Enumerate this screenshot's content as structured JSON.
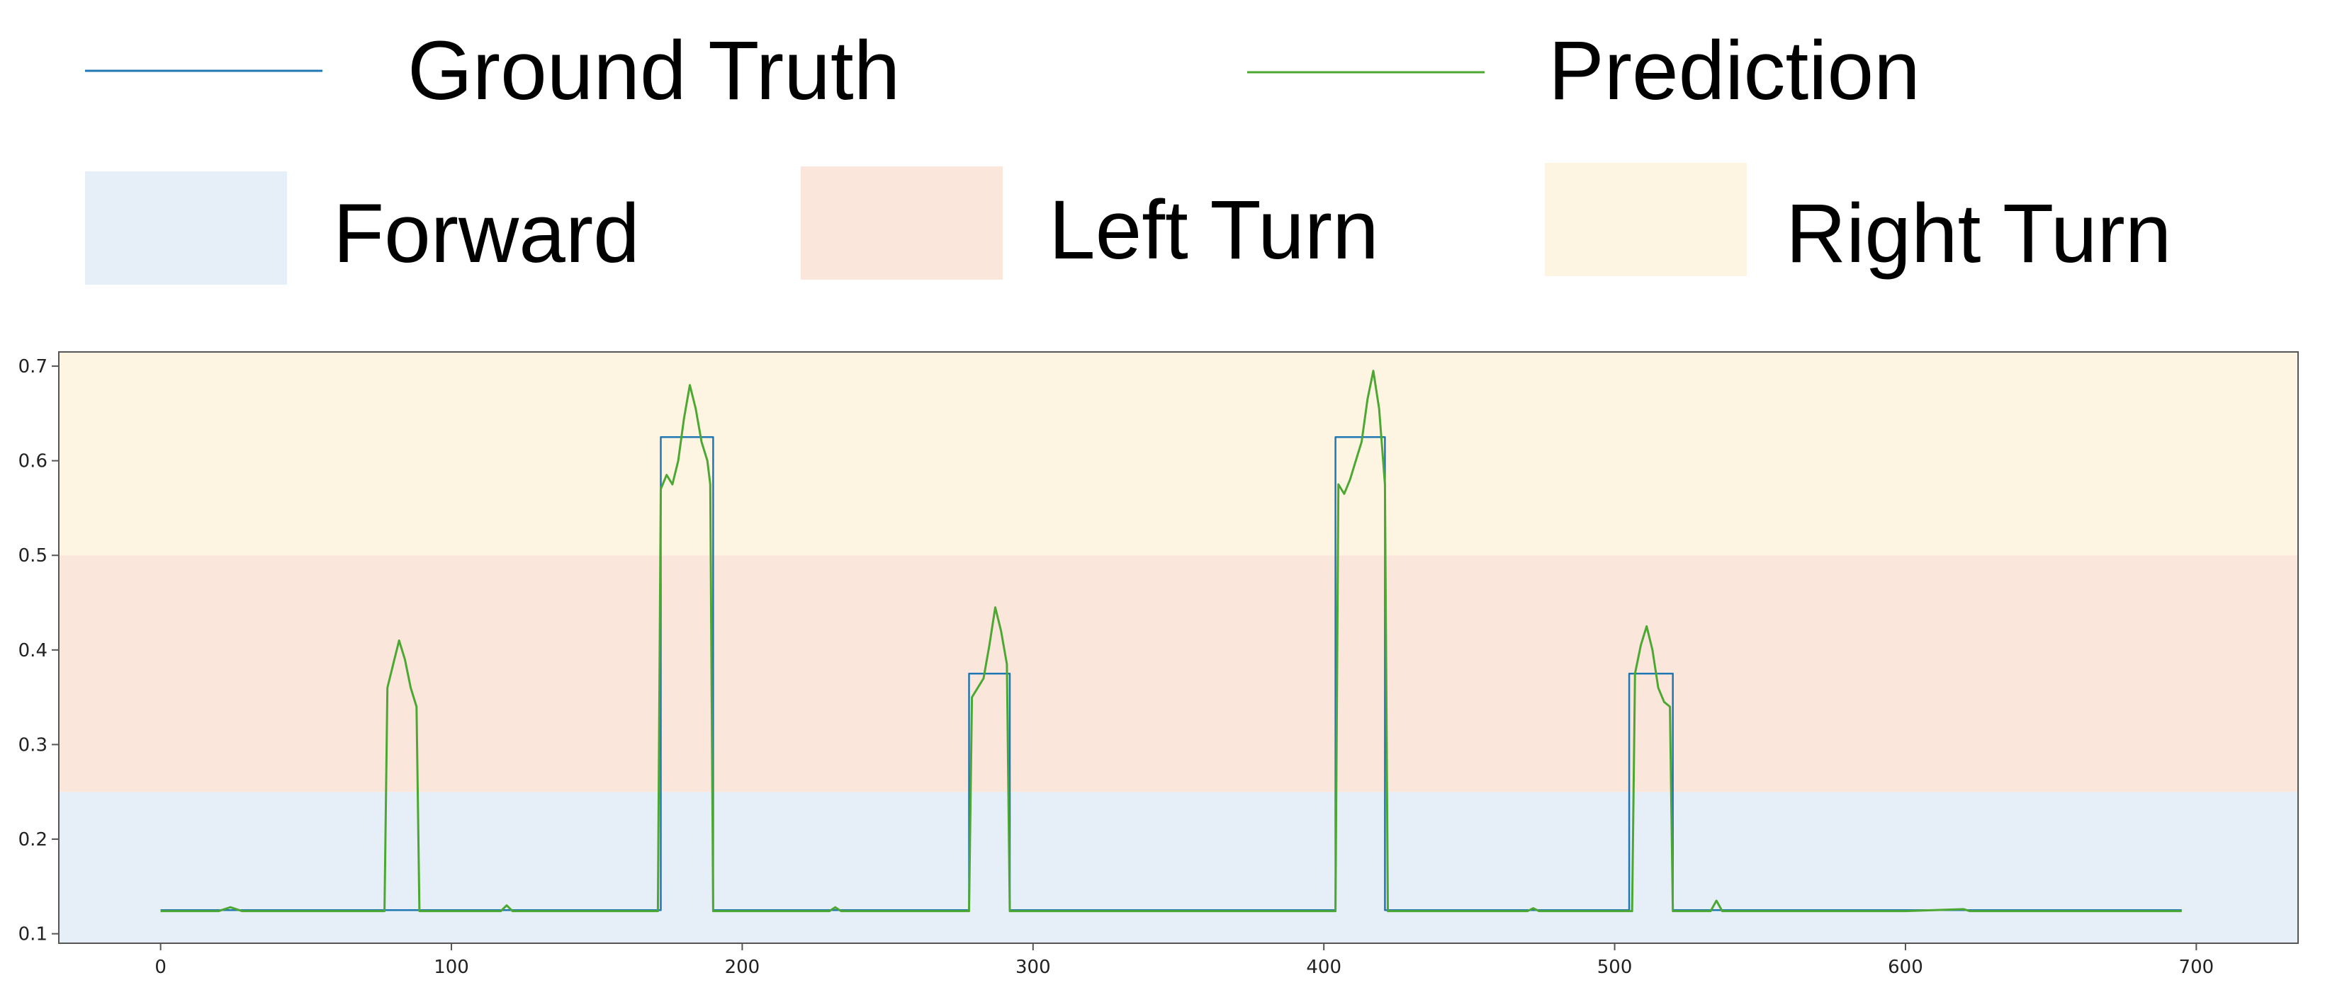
{
  "chart_data": {
    "type": "line",
    "title": "",
    "xlabel": "",
    "ylabel": "",
    "xlim": [
      -35,
      735
    ],
    "ylim": [
      0.09,
      0.715
    ],
    "xticks": [
      0,
      100,
      200,
      300,
      400,
      500,
      600,
      700
    ],
    "yticks": [
      0.1,
      0.2,
      0.3,
      0.4,
      0.5,
      0.6,
      0.7
    ],
    "grid": false,
    "legend_position": "top",
    "colors": {
      "ground_truth": "#1f77b4",
      "prediction": "#4ca832",
      "forward": "#e6eef8",
      "left_turn": "#fbe6dc",
      "right_turn": "#fdf5e2"
    },
    "bands": [
      {
        "name": "Forward",
        "y_range": [
          0.09,
          0.25
        ]
      },
      {
        "name": "Left Turn",
        "y_range": [
          0.25,
          0.5
        ]
      },
      {
        "name": "Right Turn",
        "y_range": [
          0.5,
          0.715
        ]
      }
    ],
    "series": [
      {
        "name": "Ground Truth",
        "points": [
          [
            0,
            0.125
          ],
          [
            172,
            0.125
          ],
          [
            172,
            0.625
          ],
          [
            190,
            0.625
          ],
          [
            190,
            0.125
          ],
          [
            278,
            0.125
          ],
          [
            278,
            0.375
          ],
          [
            292,
            0.375
          ],
          [
            292,
            0.125
          ],
          [
            404,
            0.125
          ],
          [
            404,
            0.625
          ],
          [
            421,
            0.625
          ],
          [
            421,
            0.125
          ],
          [
            505,
            0.125
          ],
          [
            505,
            0.375
          ],
          [
            520,
            0.375
          ],
          [
            520,
            0.125
          ],
          [
            695,
            0.125
          ]
        ]
      },
      {
        "name": "Prediction",
        "points": [
          [
            0,
            0.124
          ],
          [
            20,
            0.124
          ],
          [
            24,
            0.128
          ],
          [
            28,
            0.124
          ],
          [
            60,
            0.124
          ],
          [
            77,
            0.124
          ],
          [
            78,
            0.36
          ],
          [
            80,
            0.385
          ],
          [
            82,
            0.41
          ],
          [
            84,
            0.39
          ],
          [
            86,
            0.36
          ],
          [
            88,
            0.34
          ],
          [
            89,
            0.124
          ],
          [
            117,
            0.124
          ],
          [
            119,
            0.13
          ],
          [
            121,
            0.124
          ],
          [
            171,
            0.124
          ],
          [
            172,
            0.57
          ],
          [
            174,
            0.585
          ],
          [
            176,
            0.575
          ],
          [
            178,
            0.6
          ],
          [
            180,
            0.645
          ],
          [
            182,
            0.68
          ],
          [
            184,
            0.655
          ],
          [
            186,
            0.62
          ],
          [
            188,
            0.6
          ],
          [
            189,
            0.575
          ],
          [
            190,
            0.124
          ],
          [
            230,
            0.124
          ],
          [
            232,
            0.128
          ],
          [
            234,
            0.124
          ],
          [
            278,
            0.124
          ],
          [
            279,
            0.35
          ],
          [
            281,
            0.36
          ],
          [
            283,
            0.37
          ],
          [
            285,
            0.405
          ],
          [
            287,
            0.445
          ],
          [
            289,
            0.42
          ],
          [
            291,
            0.385
          ],
          [
            292,
            0.124
          ],
          [
            404,
            0.124
          ],
          [
            405,
            0.575
          ],
          [
            407,
            0.565
          ],
          [
            409,
            0.58
          ],
          [
            411,
            0.6
          ],
          [
            413,
            0.62
          ],
          [
            415,
            0.665
          ],
          [
            417,
            0.695
          ],
          [
            419,
            0.655
          ],
          [
            420,
            0.615
          ],
          [
            421,
            0.575
          ],
          [
            422,
            0.124
          ],
          [
            470,
            0.124
          ],
          [
            472,
            0.127
          ],
          [
            474,
            0.124
          ],
          [
            506,
            0.124
          ],
          [
            507,
            0.375
          ],
          [
            509,
            0.405
          ],
          [
            511,
            0.425
          ],
          [
            513,
            0.4
          ],
          [
            515,
            0.36
          ],
          [
            517,
            0.345
          ],
          [
            519,
            0.34
          ],
          [
            520,
            0.124
          ],
          [
            533,
            0.124
          ],
          [
            535,
            0.135
          ],
          [
            537,
            0.124
          ],
          [
            600,
            0.124
          ],
          [
            620,
            0.126
          ],
          [
            622,
            0.124
          ],
          [
            695,
            0.124
          ]
        ]
      }
    ],
    "legend": {
      "ground_truth": "Ground Truth",
      "prediction": "Prediction",
      "forward": "Forward",
      "left_turn": "Left Turn",
      "right_turn": "Right Turn"
    }
  }
}
